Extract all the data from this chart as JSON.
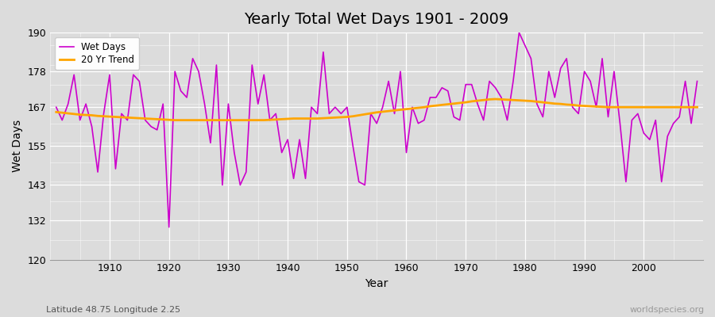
{
  "title": "Yearly Total Wet Days 1901 - 2009",
  "xlabel": "Year",
  "ylabel": "Wet Days",
  "subtitle": "Latitude 48.75 Longitude 2.25",
  "watermark": "worldspecies.org",
  "legend_labels": [
    "Wet Days",
    "20 Yr Trend"
  ],
  "wet_days_color": "#CC00CC",
  "trend_color": "#FFA500",
  "background_color": "#DCDCDC",
  "ylim": [
    120,
    190
  ],
  "yticks": [
    120,
    132,
    143,
    155,
    167,
    178,
    190
  ],
  "years": [
    1901,
    1902,
    1903,
    1904,
    1905,
    1906,
    1907,
    1908,
    1909,
    1910,
    1911,
    1912,
    1913,
    1914,
    1915,
    1916,
    1917,
    1918,
    1919,
    1920,
    1921,
    1922,
    1923,
    1924,
    1925,
    1926,
    1927,
    1928,
    1929,
    1930,
    1931,
    1932,
    1933,
    1934,
    1935,
    1936,
    1937,
    1938,
    1939,
    1940,
    1941,
    1942,
    1943,
    1944,
    1945,
    1946,
    1947,
    1948,
    1949,
    1950,
    1951,
    1952,
    1953,
    1954,
    1955,
    1956,
    1957,
    1958,
    1959,
    1960,
    1961,
    1962,
    1963,
    1964,
    1965,
    1966,
    1967,
    1968,
    1969,
    1970,
    1971,
    1972,
    1973,
    1974,
    1975,
    1976,
    1977,
    1978,
    1979,
    1980,
    1981,
    1982,
    1983,
    1984,
    1985,
    1986,
    1987,
    1988,
    1989,
    1990,
    1991,
    1992,
    1993,
    1994,
    1995,
    1996,
    1997,
    1998,
    1999,
    2000,
    2001,
    2002,
    2003,
    2004,
    2005,
    2006,
    2007,
    2008,
    2009
  ],
  "wet_days": [
    167,
    163,
    168,
    177,
    163,
    168,
    161,
    147,
    165,
    177,
    148,
    165,
    163,
    177,
    175,
    163,
    161,
    160,
    168,
    130,
    178,
    172,
    170,
    182,
    178,
    168,
    156,
    180,
    143,
    168,
    153,
    143,
    147,
    180,
    168,
    177,
    163,
    165,
    153,
    157,
    145,
    157,
    145,
    167,
    165,
    184,
    165,
    167,
    165,
    167,
    155,
    144,
    143,
    165,
    162,
    167,
    175,
    165,
    178,
    153,
    167,
    162,
    163,
    170,
    170,
    173,
    172,
    164,
    163,
    174,
    174,
    168,
    163,
    175,
    173,
    170,
    163,
    175,
    190,
    186,
    182,
    168,
    164,
    178,
    170,
    179,
    182,
    167,
    165,
    178,
    175,
    167,
    182,
    164,
    178,
    162,
    144,
    163,
    165,
    159,
    157,
    163,
    144,
    158,
    162,
    164,
    175,
    162,
    175
  ],
  "trend_values": [
    165.5,
    165.3,
    165.1,
    164.9,
    164.7,
    164.6,
    164.5,
    164.3,
    164.2,
    164.1,
    164.0,
    163.9,
    163.8,
    163.7,
    163.6,
    163.5,
    163.4,
    163.3,
    163.2,
    163.1,
    163.0,
    163.0,
    163.0,
    163.0,
    163.0,
    163.0,
    163.0,
    163.0,
    163.0,
    163.0,
    163.0,
    163.0,
    163.0,
    163.0,
    163.0,
    163.0,
    163.1,
    163.2,
    163.3,
    163.4,
    163.5,
    163.5,
    163.5,
    163.5,
    163.5,
    163.6,
    163.7,
    163.8,
    163.9,
    164.0,
    164.2,
    164.5,
    164.8,
    165.1,
    165.4,
    165.6,
    165.8,
    166.0,
    166.2,
    166.4,
    166.6,
    166.8,
    167.0,
    167.3,
    167.5,
    167.7,
    167.9,
    168.1,
    168.3,
    168.5,
    168.8,
    169.0,
    169.2,
    169.4,
    169.5,
    169.4,
    169.3,
    169.2,
    169.1,
    169.0,
    168.9,
    168.7,
    168.5,
    168.3,
    168.1,
    168.0,
    167.8,
    167.7,
    167.5,
    167.4,
    167.3,
    167.2,
    167.1,
    167.0,
    167.0,
    167.0,
    167.0,
    167.0,
    167.0,
    167.0,
    167.0,
    167.0,
    167.0,
    167.0,
    167.0,
    167.0,
    167.0,
    167.0,
    167.0
  ]
}
